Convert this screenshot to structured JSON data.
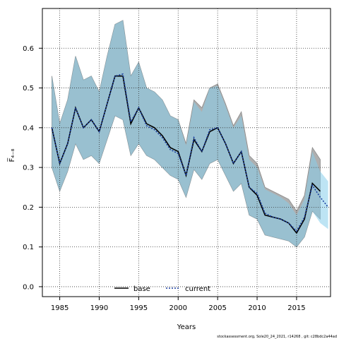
{
  "chart_data": {
    "type": "area",
    "xlabel": "Years",
    "ylabel": "F̅₄₋₈",
    "xlim": [
      1982.8,
      2019.3
    ],
    "ylim": [
      -0.025,
      0.7
    ],
    "x_ticks": [
      1985,
      1990,
      1995,
      2000,
      2005,
      2010,
      2015
    ],
    "y_ticks": [
      0.0,
      0.1,
      0.2,
      0.3,
      0.4,
      0.5,
      0.6
    ],
    "y_tick_labels": [
      "0.0",
      "0.1",
      "0.2",
      "0.3",
      "0.4",
      "0.5",
      "0.6"
    ],
    "grid": true,
    "legend_position": "bottom-center",
    "series": [
      {
        "name": "base",
        "line_style": "solid",
        "line_color": "#000000",
        "band_color": "#a6a6a6",
        "x": [
          1984,
          1985,
          1986,
          1987,
          1988,
          1989,
          1990,
          1991,
          1992,
          1993,
          1994,
          1995,
          1996,
          1997,
          1998,
          1999,
          2000,
          2001,
          2002,
          2003,
          2004,
          2005,
          2006,
          2007,
          2008,
          2009,
          2010,
          2011,
          2012,
          2013,
          2014,
          2015,
          2016,
          2017,
          2018
        ],
        "y": [
          0.4,
          0.31,
          0.36,
          0.45,
          0.4,
          0.42,
          0.39,
          0.46,
          0.53,
          0.53,
          0.41,
          0.45,
          0.41,
          0.4,
          0.38,
          0.35,
          0.34,
          0.28,
          0.37,
          0.34,
          0.39,
          0.4,
          0.36,
          0.31,
          0.34,
          0.25,
          0.23,
          0.18,
          0.175,
          0.17,
          0.16,
          0.135,
          0.17,
          0.26,
          0.24
        ],
        "upper": [
          0.53,
          0.41,
          0.47,
          0.58,
          0.52,
          0.53,
          0.49,
          0.58,
          0.66,
          0.67,
          0.53,
          0.565,
          0.5,
          0.49,
          0.47,
          0.43,
          0.42,
          0.36,
          0.47,
          0.45,
          0.5,
          0.51,
          0.46,
          0.405,
          0.44,
          0.33,
          0.31,
          0.25,
          0.24,
          0.23,
          0.22,
          0.19,
          0.23,
          0.35,
          0.32
        ],
        "lower": [
          0.3,
          0.24,
          0.29,
          0.36,
          0.32,
          0.33,
          0.31,
          0.37,
          0.43,
          0.42,
          0.33,
          0.36,
          0.33,
          0.32,
          0.3,
          0.28,
          0.27,
          0.225,
          0.295,
          0.27,
          0.31,
          0.32,
          0.28,
          0.24,
          0.26,
          0.18,
          0.17,
          0.13,
          0.125,
          0.12,
          0.115,
          0.1,
          0.125,
          0.19,
          0.17
        ]
      },
      {
        "name": "current",
        "line_style": "dotted",
        "line_color": "#1a3fa0",
        "band_color": "#87ceeb",
        "x": [
          1984,
          1985,
          1986,
          1987,
          1988,
          1989,
          1990,
          1991,
          1992,
          1993,
          1994,
          1995,
          1996,
          1997,
          1998,
          1999,
          2000,
          2001,
          2002,
          2003,
          2004,
          2005,
          2006,
          2007,
          2008,
          2009,
          2010,
          2011,
          2012,
          2013,
          2014,
          2015,
          2016,
          2017,
          2018,
          2019
        ],
        "y": [
          0.4,
          0.31,
          0.36,
          0.45,
          0.4,
          0.42,
          0.39,
          0.46,
          0.53,
          0.535,
          0.415,
          0.45,
          0.405,
          0.395,
          0.375,
          0.345,
          0.335,
          0.28,
          0.375,
          0.34,
          0.395,
          0.4,
          0.36,
          0.31,
          0.34,
          0.25,
          0.235,
          0.185,
          0.175,
          0.17,
          0.16,
          0.14,
          0.175,
          0.255,
          0.225,
          0.2
        ],
        "upper": [
          0.53,
          0.41,
          0.47,
          0.58,
          0.52,
          0.53,
          0.49,
          0.58,
          0.66,
          0.67,
          0.53,
          0.565,
          0.5,
          0.49,
          0.47,
          0.43,
          0.42,
          0.355,
          0.465,
          0.44,
          0.5,
          0.505,
          0.455,
          0.4,
          0.43,
          0.32,
          0.3,
          0.245,
          0.235,
          0.225,
          0.21,
          0.18,
          0.22,
          0.34,
          0.29,
          0.265
        ],
        "lower": [
          0.3,
          0.24,
          0.29,
          0.36,
          0.32,
          0.33,
          0.31,
          0.37,
          0.43,
          0.42,
          0.33,
          0.36,
          0.33,
          0.32,
          0.3,
          0.28,
          0.27,
          0.225,
          0.295,
          0.27,
          0.31,
          0.32,
          0.28,
          0.24,
          0.26,
          0.18,
          0.17,
          0.13,
          0.125,
          0.12,
          0.115,
          0.1,
          0.125,
          0.19,
          0.16,
          0.145
        ]
      }
    ],
    "footnote": "stockassessment.org,  Sole20_24_2021,  r14268  ,  git:  c28bdc2a44ad"
  }
}
